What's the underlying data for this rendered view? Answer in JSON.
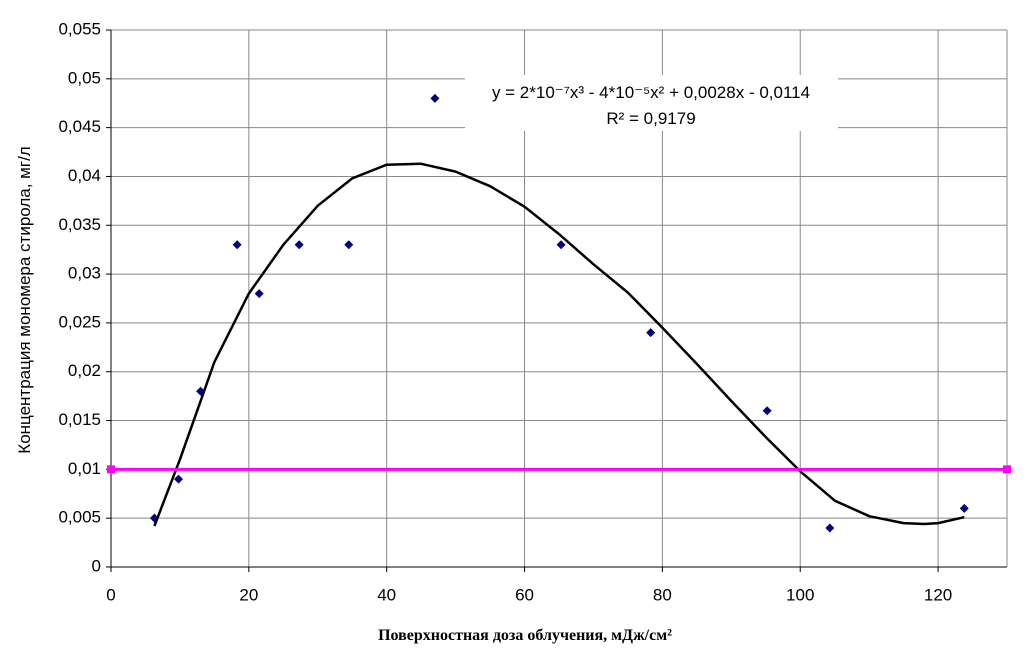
{
  "chart_data": {
    "type": "scatter",
    "xlabel": "Поверхностная доза облучения, мДж/см²",
    "ylabel": "Концентрация мономера стирола, мг/л",
    "annotation": {
      "equation": "y = 2*10⁻⁷x³ - 4*10⁻⁵x² + 0,0028x - 0,0114",
      "r2": "R² = 0,9179"
    },
    "xlim": [
      0,
      130
    ],
    "ylim": [
      0,
      0.055
    ],
    "xticks": [
      0,
      20,
      40,
      60,
      80,
      100,
      120
    ],
    "yticks": [
      0,
      {
        "value": 0.005,
        "label": "0,005"
      },
      {
        "value": 0.01,
        "label": "0,01"
      },
      {
        "value": 0.015,
        "label": "0,015"
      },
      {
        "value": 0.02,
        "label": "0,02"
      },
      {
        "value": 0.025,
        "label": "0,025"
      },
      {
        "value": 0.03,
        "label": "0,03"
      },
      {
        "value": 0.035,
        "label": "0,035"
      },
      {
        "value": 0.04,
        "label": "0,04"
      },
      {
        "value": 0.045,
        "label": "0,045"
      },
      {
        "value": 0.05,
        "label": "0,05"
      },
      {
        "value": 0.055,
        "label": "0,055"
      }
    ],
    "grid": true,
    "series": [
      {
        "type": "scatter",
        "marker": "diamond",
        "color": "#000080",
        "x": [
          6.3,
          9.8,
          13,
          18.3,
          21.5,
          27.3,
          34.5,
          47,
          65.3,
          78.3,
          95.2,
          104.3,
          123.8
        ],
        "values": [
          0.005,
          0.009,
          0.018,
          0.033,
          0.028,
          0.033,
          0.033,
          0.048,
          0.033,
          0.024,
          0.016,
          0.004,
          0.006
        ]
      },
      {
        "type": "line",
        "color": "#000000",
        "x": [
          6.3,
          10,
          15,
          20,
          25,
          30,
          35,
          40,
          45,
          50,
          55,
          60,
          65,
          70,
          75,
          80,
          85,
          90,
          95,
          100,
          105,
          110,
          115,
          118,
          120,
          123.8
        ],
        "values": [
          0.0042,
          0.011,
          0.021,
          0.028,
          0.033,
          0.037,
          0.0398,
          0.0412,
          0.0413,
          0.0405,
          0.039,
          0.0369,
          0.0341,
          0.031,
          0.0281,
          0.0245,
          0.0208,
          0.017,
          0.0133,
          0.0098,
          0.0068,
          0.0052,
          0.0045,
          0.0044,
          0.0045,
          0.0051
        ]
      },
      {
        "type": "line",
        "marker": "square",
        "color": "#ff00ff",
        "x": [
          0,
          130
        ],
        "values": [
          0.01,
          0.01
        ]
      }
    ]
  }
}
